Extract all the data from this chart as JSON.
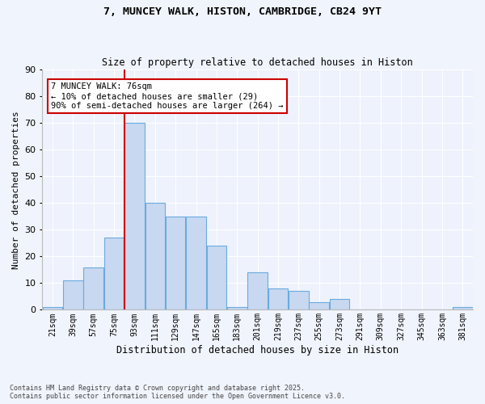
{
  "title_line1": "7, MUNCEY WALK, HISTON, CAMBRIDGE, CB24 9YT",
  "title_line2": "Size of property relative to detached houses in Histon",
  "xlabel": "Distribution of detached houses by size in Histon",
  "ylabel": "Number of detached properties",
  "bar_color": "#c8d8f0",
  "bar_edge_color": "#6aabdf",
  "background_color": "#eef2fc",
  "grid_color": "#ffffff",
  "fig_background": "#f0f4fc",
  "categories": [
    "21sqm",
    "39sqm",
    "57sqm",
    "75sqm",
    "93sqm",
    "111sqm",
    "129sqm",
    "147sqm",
    "165sqm",
    "183sqm",
    "201sqm",
    "219sqm",
    "237sqm",
    "255sqm",
    "273sqm",
    "291sqm",
    "309sqm",
    "327sqm",
    "345sqm",
    "363sqm",
    "381sqm"
  ],
  "values": [
    1,
    11,
    16,
    27,
    70,
    40,
    35,
    35,
    24,
    1,
    14,
    8,
    7,
    3,
    4,
    0,
    0,
    0,
    0,
    0,
    1
  ],
  "ylim": [
    0,
    90
  ],
  "yticks": [
    0,
    10,
    20,
    30,
    40,
    50,
    60,
    70,
    80,
    90
  ],
  "annotation_text": "7 MUNCEY WALK: 76sqm\n← 10% of detached houses are smaller (29)\n90% of semi-detached houses are larger (264) →",
  "vline_color": "#cc0000",
  "annotation_box_color": "#cc0000",
  "footer_line1": "Contains HM Land Registry data © Crown copyright and database right 2025.",
  "footer_line2": "Contains public sector information licensed under the Open Government Licence v3.0."
}
